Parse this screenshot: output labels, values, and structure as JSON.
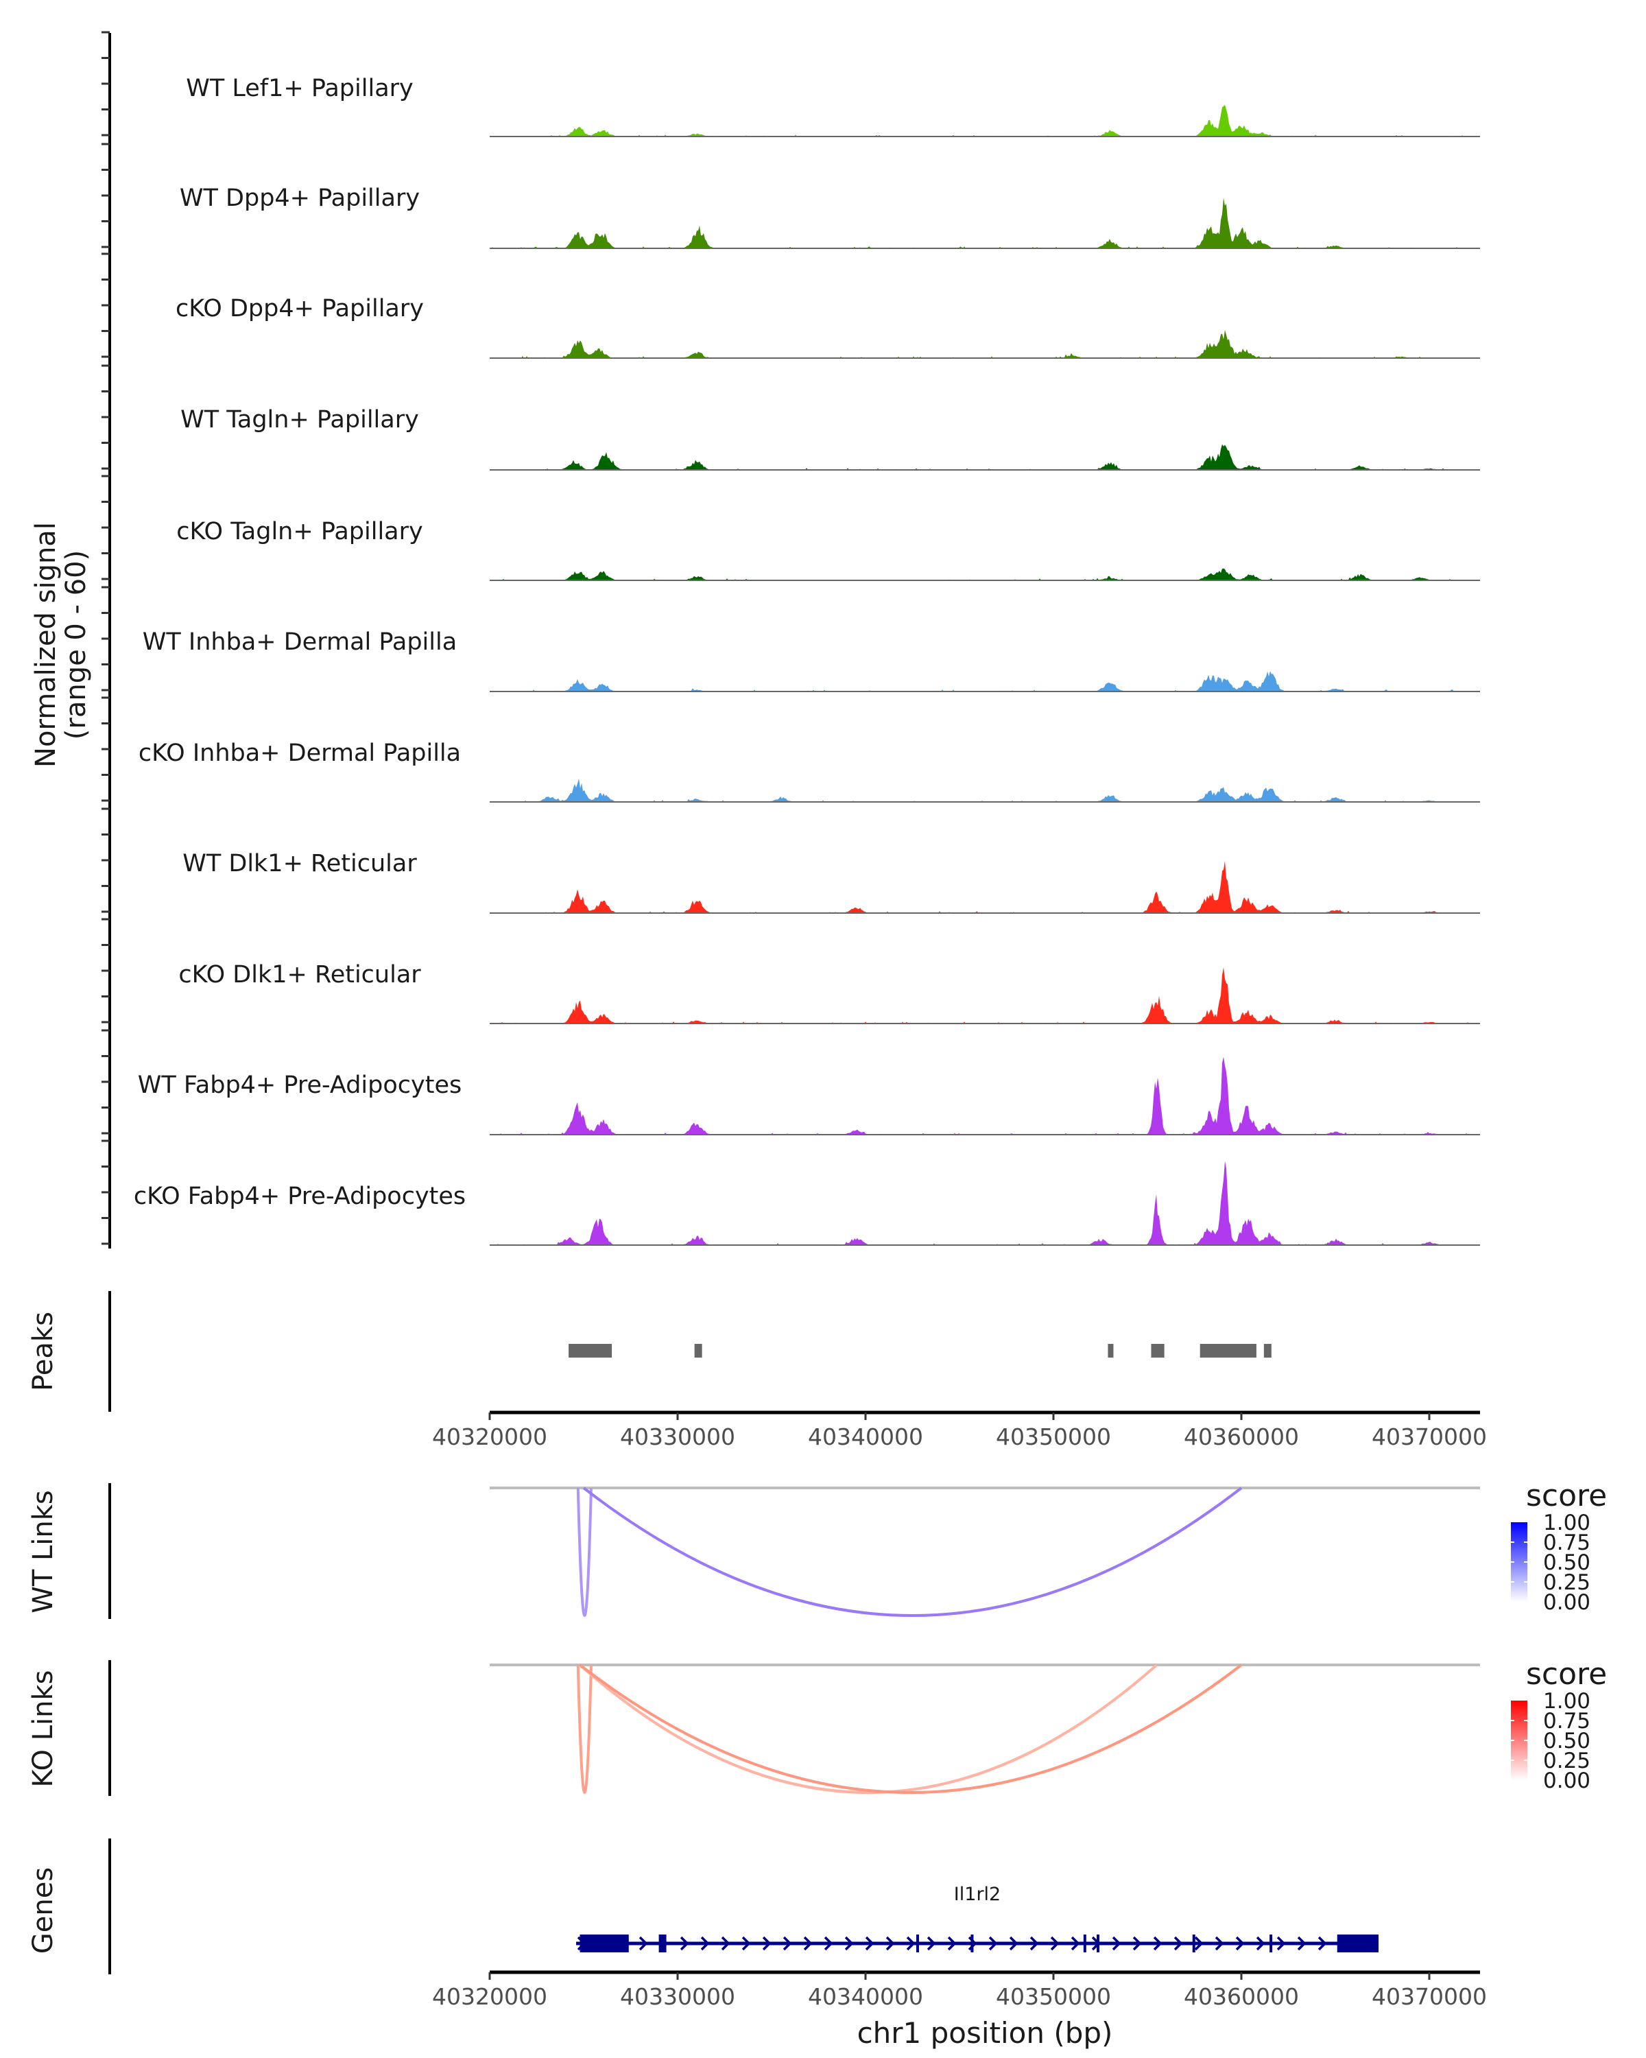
{
  "chart_data": {
    "type": "area",
    "title": "",
    "region": {
      "chrom": "chr1",
      "start": 40320000,
      "end": 40372500
    },
    "xlabel": "chr1 position (bp)",
    "x_ticks": [
      40320000,
      40330000,
      40340000,
      40350000,
      40360000,
      40370000
    ],
    "x_tick_labels": [
      "40320000",
      "40330000",
      "40340000",
      "40350000",
      "40360000",
      "40370000"
    ],
    "coverage": {
      "ylabel_line1": "Normalized signal",
      "ylabel_line2": "(range 0 - 60)",
      "ylim": [
        0,
        60
      ],
      "tracks": [
        {
          "name": "WT Lef1+ Papillary",
          "color": "#66CC00",
          "peaks": [
            [
              40324700,
              7
            ],
            [
              40326000,
              5
            ],
            [
              40331000,
              2
            ],
            [
              40353000,
              4
            ],
            [
              40358300,
              10
            ],
            [
              40359100,
              22
            ],
            [
              40360000,
              8
            ],
            [
              40361000,
              3
            ]
          ]
        },
        {
          "name": "WT Dpp4+ Papillary",
          "color": "#458B00",
          "peaks": [
            [
              40324700,
              10
            ],
            [
              40325900,
              12
            ],
            [
              40331100,
              14
            ],
            [
              40353000,
              6
            ],
            [
              40358300,
              14
            ],
            [
              40359100,
              34
            ],
            [
              40360000,
              14
            ],
            [
              40361000,
              5
            ],
            [
              40365000,
              2
            ]
          ]
        },
        {
          "name": "cKO Dpp4+ Papillary",
          "color": "#458B00",
          "peaks": [
            [
              40324700,
              12
            ],
            [
              40325800,
              6
            ],
            [
              40331000,
              4
            ],
            [
              40351000,
              2
            ],
            [
              40358300,
              10
            ],
            [
              40359100,
              18
            ],
            [
              40360200,
              6
            ],
            [
              40368500,
              1
            ]
          ]
        },
        {
          "name": "WT Tagln+ Papillary",
          "color": "#006400",
          "peaks": [
            [
              40324500,
              6
            ],
            [
              40326200,
              12
            ],
            [
              40331000,
              6
            ],
            [
              40353000,
              5
            ],
            [
              40358300,
              8
            ],
            [
              40359100,
              16
            ],
            [
              40360500,
              3
            ],
            [
              40366300,
              3
            ],
            [
              40370000,
              1
            ]
          ]
        },
        {
          "name": "cKO Tagln+ Papillary",
          "color": "#006400",
          "peaks": [
            [
              40324700,
              7
            ],
            [
              40326000,
              6
            ],
            [
              40331000,
              3
            ],
            [
              40353000,
              2
            ],
            [
              40358300,
              4
            ],
            [
              40359100,
              8
            ],
            [
              40360500,
              4
            ],
            [
              40366300,
              4
            ],
            [
              40369500,
              2
            ]
          ]
        },
        {
          "name": "WT Inhba+ Dermal Papilla",
          "color": "#4F9FE6",
          "peaks": [
            [
              40324700,
              8
            ],
            [
              40326000,
              5
            ],
            [
              40331000,
              1
            ],
            [
              40353000,
              7
            ],
            [
              40358300,
              11
            ],
            [
              40359100,
              9
            ],
            [
              40360300,
              7
            ],
            [
              40361500,
              15
            ],
            [
              40365000,
              2
            ]
          ]
        },
        {
          "name": "cKO Inhba+ Dermal Papilla",
          "color": "#4F9FE6",
          "peaks": [
            [
              40323200,
              4
            ],
            [
              40324700,
              14
            ],
            [
              40326000,
              6
            ],
            [
              40331000,
              2
            ],
            [
              40335500,
              3
            ],
            [
              40353000,
              5
            ],
            [
              40358300,
              7
            ],
            [
              40359100,
              9
            ],
            [
              40360300,
              7
            ],
            [
              40361500,
              12
            ],
            [
              40365000,
              3
            ],
            [
              40370000,
              1
            ]
          ]
        },
        {
          "name": "WT Dlk1+ Reticular",
          "color": "#FF2A1A",
          "peaks": [
            [
              40324700,
              15
            ],
            [
              40326000,
              8
            ],
            [
              40331000,
              9
            ],
            [
              40339500,
              4
            ],
            [
              40355500,
              13
            ],
            [
              40358300,
              14
            ],
            [
              40359100,
              40
            ],
            [
              40360300,
              11
            ],
            [
              40361500,
              6
            ],
            [
              40365000,
              2
            ],
            [
              40370000,
              1
            ]
          ]
        },
        {
          "name": "cKO Dlk1+ Reticular",
          "color": "#FF2A1A",
          "peaks": [
            [
              40324700,
              14
            ],
            [
              40326000,
              6
            ],
            [
              40331000,
              2
            ],
            [
              40355500,
              18
            ],
            [
              40358300,
              8
            ],
            [
              40359100,
              36
            ],
            [
              40360300,
              9
            ],
            [
              40361500,
              5
            ],
            [
              40365000,
              2
            ],
            [
              40370000,
              1
            ]
          ]
        },
        {
          "name": "WT Fabp4+ Pre-Adipocytes",
          "color": "#B23AEE",
          "peaks": [
            [
              40324700,
              20
            ],
            [
              40326000,
              10
            ],
            [
              40331000,
              8
            ],
            [
              40339500,
              3
            ],
            [
              40355500,
              36
            ],
            [
              40358300,
              14
            ],
            [
              40359100,
              60
            ],
            [
              40360300,
              18
            ],
            [
              40361500,
              7
            ],
            [
              40365000,
              2
            ],
            [
              40370000,
              1
            ]
          ]
        },
        {
          "name": "cKO Fabp4+ Pre-Adipocytes",
          "color": "#B23AEE",
          "peaks": [
            [
              40324200,
              5
            ],
            [
              40325800,
              18
            ],
            [
              40331000,
              6
            ],
            [
              40339500,
              5
            ],
            [
              40352500,
              4
            ],
            [
              40355500,
              30
            ],
            [
              40358300,
              12
            ],
            [
              40359100,
              52
            ],
            [
              40360300,
              20
            ],
            [
              40361500,
              8
            ],
            [
              40365000,
              4
            ],
            [
              40370000,
              2
            ]
          ]
        }
      ]
    },
    "peaks": {
      "label": "Peaks",
      "color": "#666666",
      "regions": [
        [
          40324200,
          40326500
        ],
        [
          40330900,
          40331300
        ],
        [
          40352900,
          40353100
        ],
        [
          40355200,
          40355900
        ],
        [
          40357800,
          40360800
        ],
        [
          40361200,
          40361600
        ]
      ]
    },
    "links": [
      {
        "label": "WT Links",
        "legend": {
          "title": "score",
          "ticks": [
            "1.00",
            "0.75",
            "0.50",
            "0.25",
            "0.00"
          ],
          "high": "#0000FF",
          "low": "#FFFFFF"
        },
        "arcs": [
          {
            "start": 40324700,
            "end": 40325400,
            "score": 0.4
          },
          {
            "start": 40325000,
            "end": 40360000,
            "score": 0.65
          }
        ]
      },
      {
        "label": "KO Links",
        "legend": {
          "title": "score",
          "ticks": [
            "1.00",
            "0.75",
            "0.50",
            "0.25",
            "0.00"
          ],
          "high": "#FF0000",
          "low": "#FFFFFF"
        },
        "arcs": [
          {
            "start": 40324700,
            "end": 40325400,
            "score": 0.45
          },
          {
            "start": 40324800,
            "end": 40355500,
            "score": 0.25
          },
          {
            "start": 40324800,
            "end": 40360000,
            "score": 0.55
          }
        ]
      }
    ],
    "genes": {
      "label": "Genes",
      "color": "#00008B",
      "items": [
        {
          "name": "Il1rl2",
          "strand": "+",
          "start": 40324600,
          "end": 40367300,
          "exons": [
            [
              40324800,
              40327400
            ],
            [
              40329000,
              40329400
            ],
            [
              40342700,
              40342800
            ],
            [
              40345600,
              40345700
            ],
            [
              40351600,
              40351700
            ],
            [
              40352300,
              40352400
            ],
            [
              40357400,
              40357500
            ],
            [
              40361500,
              40361600
            ],
            [
              40365100,
              40367300
            ]
          ]
        }
      ]
    }
  }
}
